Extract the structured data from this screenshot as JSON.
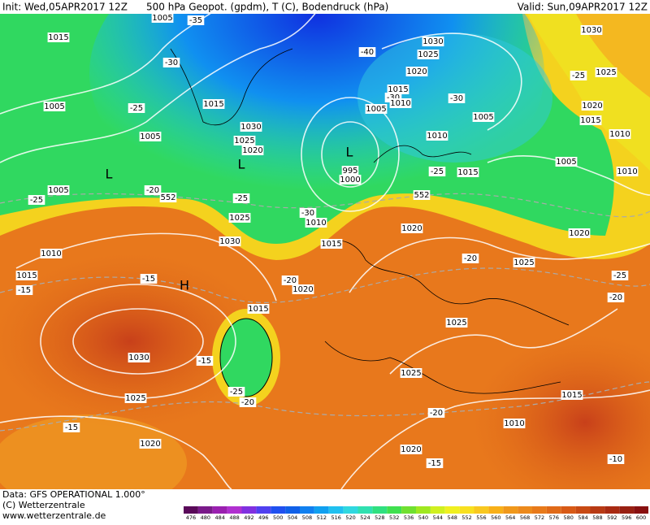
{
  "header": {
    "init": "Init: Wed,05APR2017 12Z",
    "title": "500 hPa Geopot. (gpdm), T (C), Bodendruck (hPa)",
    "valid": "Valid: Sun,09APR2017 12Z"
  },
  "footer": {
    "data": "Data: GFS OPERATIONAL 1.000°",
    "copyright": "(C) Wetterzentrale",
    "url": "www.wetterzentrale.de"
  },
  "map_labels": [
    "1005",
    "-35",
    "1015",
    "-30",
    "-40",
    "1030",
    "1025",
    "1030",
    "1020",
    "-25",
    "1025",
    "1015",
    "-30",
    "1010",
    "-30",
    "1020",
    "1005",
    "-25",
    "1015",
    "1005",
    "1005",
    "1015",
    "1030",
    "1005",
    "1025",
    "1020",
    "1010",
    "1010",
    "995",
    "1000",
    "-25",
    "1015",
    "1005",
    "1010",
    "1005",
    "-20",
    "552",
    "-25",
    "552",
    "-25",
    "-30",
    "1010",
    "1025",
    "1020",
    "1030",
    "1020",
    "1010",
    "1015",
    "-20",
    "1025",
    "1015",
    "-15",
    "-20",
    "1020",
    "-25",
    "-15",
    "-20",
    "1015",
    "1025",
    "1030",
    "-15",
    "1025",
    "1025",
    "-25",
    "-20",
    "1015",
    "-20",
    "-15",
    "1010",
    "1020",
    "1020",
    "-15",
    "-10",
    "L",
    "L",
    "L",
    "H"
  ],
  "color_scale": {
    "values": [
      476,
      480,
      484,
      488,
      492,
      496,
      500,
      504,
      508,
      512,
      516,
      520,
      524,
      528,
      532,
      536,
      540,
      544,
      548,
      552,
      556,
      560,
      564,
      568,
      572,
      576,
      580,
      584,
      588,
      592,
      596,
      600
    ],
    "colors": [
      "#5a0a5a",
      "#7a1a8a",
      "#9a20b0",
      "#b030d0",
      "#8030e0",
      "#5040f0",
      "#2050f0",
      "#1060e8",
      "#1080f0",
      "#10a0f0",
      "#20c0f0",
      "#30d8e0",
      "#30e0b0",
      "#30e080",
      "#40e050",
      "#70e030",
      "#a0e820",
      "#d0f020",
      "#f0f020",
      "#f8e020",
      "#f8c820",
      "#f8b018",
      "#f0981a",
      "#ec8a1c",
      "#e87a1a",
      "#e06a18",
      "#d85a16",
      "#c84a14",
      "#b83a14",
      "#a82a12",
      "#982012",
      "#881010"
    ]
  }
}
